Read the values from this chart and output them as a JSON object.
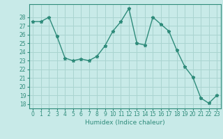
{
  "x": [
    0,
    1,
    2,
    3,
    4,
    5,
    6,
    7,
    8,
    9,
    10,
    11,
    12,
    13,
    14,
    15,
    16,
    17,
    18,
    19,
    20,
    21,
    22,
    23
  ],
  "y": [
    27.5,
    27.5,
    28.0,
    25.8,
    23.3,
    23.0,
    23.2,
    23.0,
    23.5,
    24.7,
    26.4,
    27.5,
    29.0,
    25.0,
    24.8,
    28.0,
    27.2,
    26.4,
    24.2,
    22.3,
    21.1,
    18.7,
    18.1,
    19.0
  ],
  "line_color": "#2e8b7a",
  "marker": "*",
  "marker_size": 3.5,
  "bg_color": "#c8eae8",
  "grid_color": "#aad4d0",
  "xlabel": "Humidex (Indice chaleur)",
  "ylim": [
    17.5,
    29.5
  ],
  "yticks": [
    18,
    19,
    20,
    21,
    22,
    23,
    24,
    25,
    26,
    27,
    28
  ],
  "xticks": [
    0,
    1,
    2,
    3,
    4,
    5,
    6,
    7,
    8,
    9,
    10,
    11,
    12,
    13,
    14,
    15,
    16,
    17,
    18,
    19,
    20,
    21,
    22,
    23
  ]
}
